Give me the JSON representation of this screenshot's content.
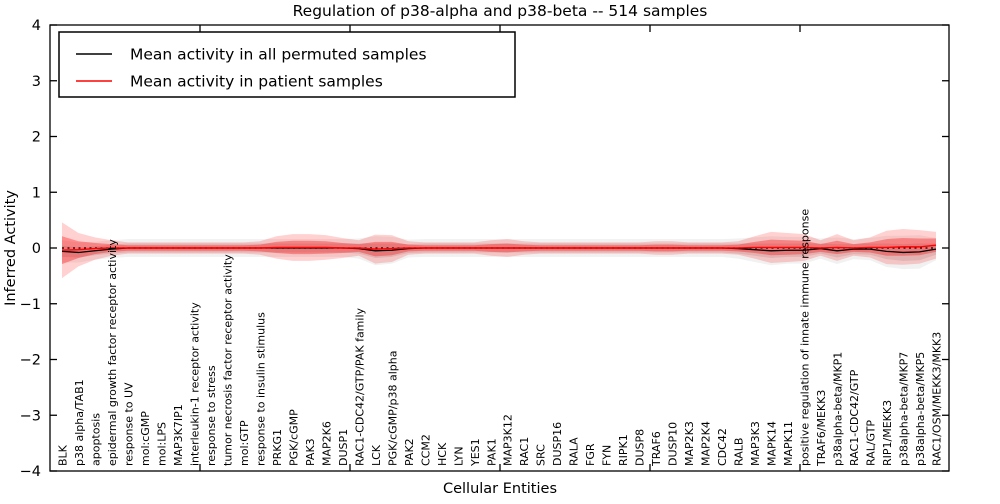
{
  "chart_data": {
    "type": "line",
    "title": "Regulation of p38-alpha and p38-beta -- 514 samples",
    "xlabel": "Cellular Entities",
    "ylabel": "Inferred Activity",
    "ylim": [
      -4,
      4
    ],
    "ytick_values": [
      -4,
      -3,
      -2,
      -1,
      0,
      1,
      2,
      3,
      4
    ],
    "ytick_labels": [
      "−4",
      "−3",
      "−2",
      "−1",
      "0",
      "1",
      "2",
      "3",
      "4"
    ],
    "grid": false,
    "legend_position": "upper left",
    "zero_reference_line": {
      "y": 0,
      "style": "dotted",
      "color": "#000000"
    },
    "colors": {
      "permuted_line": "#000000",
      "patient_line": "#ff0000",
      "permuted_band": "#bdbdbd",
      "patient_band": "#ff0000"
    },
    "categories": [
      "BLK",
      "p38 alpha/TAB1",
      "apoptosis",
      "epidermal growth factor receptor activity",
      "response to UV",
      "mol:cGMP",
      "mol:LPS",
      "MAP3K7IP1",
      "interleukin-1 receptor activity",
      "response to stress",
      "tumor necrosis factor receptor activity",
      "mol:GTP",
      "response to insulin stimulus",
      "PRKG1",
      "PGK/cGMP",
      "PAK3",
      "MAP2K6",
      "DUSP1",
      "RAC1-CDC42/GTP/PAK family",
      "LCK",
      "PGK/cGMP/p38 alpha",
      "PAK2",
      "CCM2",
      "HCK",
      "LYN",
      "YES1",
      "PAK1",
      "MAP3K12",
      "RAC1",
      "SRC",
      "DUSP16",
      "RALA",
      "FGR",
      "FYN",
      "RIPK1",
      "DUSP8",
      "TRAF6",
      "DUSP10",
      "MAP2K3",
      "MAP2K4",
      "CDC42",
      "RALB",
      "MAP3K3",
      "MAPK14",
      "MAPK11",
      "positive regulation of innate immune response",
      "TRAF6/MEKK3",
      "p38alpha-beta/MKP1",
      "RAC1-CDC42/GTP",
      "RAL/GTP",
      "RIP1/MEKK3",
      "p38alpha-beta/MKP7",
      "p38alpha-beta/MKP5",
      "RAC1/OSM/MEKK3/MKK3"
    ],
    "series": [
      {
        "name": "Mean activity in all permuted samples",
        "color": "#000000",
        "values": [
          -0.06,
          -0.08,
          -0.05,
          -0.02,
          0,
          0,
          0,
          0,
          0,
          0,
          0,
          0,
          0,
          0,
          0,
          0,
          0,
          0,
          -0.01,
          -0.05,
          -0.04,
          -0.01,
          0,
          0,
          0,
          0,
          0,
          0,
          0,
          0,
          0,
          0,
          0,
          0,
          0,
          0,
          0,
          0,
          0,
          0,
          0,
          -0.01,
          -0.03,
          -0.05,
          -0.04,
          -0.04,
          -0.01,
          -0.05,
          -0.02,
          -0.02,
          -0.06,
          -0.08,
          -0.07,
          -0.02
        ],
        "std": [
          0.1,
          0.09,
          0.08,
          0.08,
          0.08,
          0.08,
          0.08,
          0.08,
          0.08,
          0.08,
          0.08,
          0.08,
          0.08,
          0.08,
          0.08,
          0.08,
          0.08,
          0.08,
          0.09,
          0.13,
          0.12,
          0.08,
          0.08,
          0.08,
          0.08,
          0.08,
          0.08,
          0.08,
          0.08,
          0.08,
          0.08,
          0.08,
          0.08,
          0.08,
          0.08,
          0.08,
          0.08,
          0.08,
          0.08,
          0.08,
          0.08,
          0.09,
          0.11,
          0.13,
          0.12,
          0.12,
          0.09,
          0.12,
          0.09,
          0.1,
          0.14,
          0.15,
          0.15,
          0.1
        ]
      },
      {
        "name": "Mean activity in patient samples",
        "color": "#ff0000",
        "values": [
          -0.04,
          -0.03,
          -0.01,
          0,
          0,
          0,
          0,
          0,
          0,
          0,
          0,
          0,
          0,
          0.01,
          0.01,
          0.01,
          0.01,
          0,
          0,
          -0.02,
          -0.01,
          0,
          0,
          0,
          0,
          0,
          0,
          0,
          0,
          0,
          0,
          0,
          0,
          0,
          0,
          0,
          0,
          0,
          0,
          0,
          0,
          0,
          0.01,
          0.01,
          0.01,
          0.01,
          0,
          0.01,
          0,
          0.01,
          0.01,
          0.02,
          0.02,
          0.05
        ],
        "std": [
          0.25,
          0.15,
          0.1,
          0.07,
          0.05,
          0.05,
          0.05,
          0.05,
          0.05,
          0.05,
          0.05,
          0.05,
          0.06,
          0.1,
          0.12,
          0.12,
          0.11,
          0.09,
          0.07,
          0.13,
          0.12,
          0.06,
          0.05,
          0.05,
          0.05,
          0.05,
          0.07,
          0.08,
          0.06,
          0.05,
          0.05,
          0.05,
          0.05,
          0.05,
          0.05,
          0.05,
          0.06,
          0.06,
          0.05,
          0.05,
          0.05,
          0.06,
          0.1,
          0.14,
          0.13,
          0.12,
          0.07,
          0.12,
          0.07,
          0.09,
          0.15,
          0.16,
          0.15,
          0.12
        ]
      }
    ],
    "legend": {
      "items": [
        {
          "label": "Mean activity in all permuted samples",
          "color": "#000000"
        },
        {
          "label": "Mean activity in patient samples",
          "color": "#ff0000"
        }
      ]
    }
  }
}
